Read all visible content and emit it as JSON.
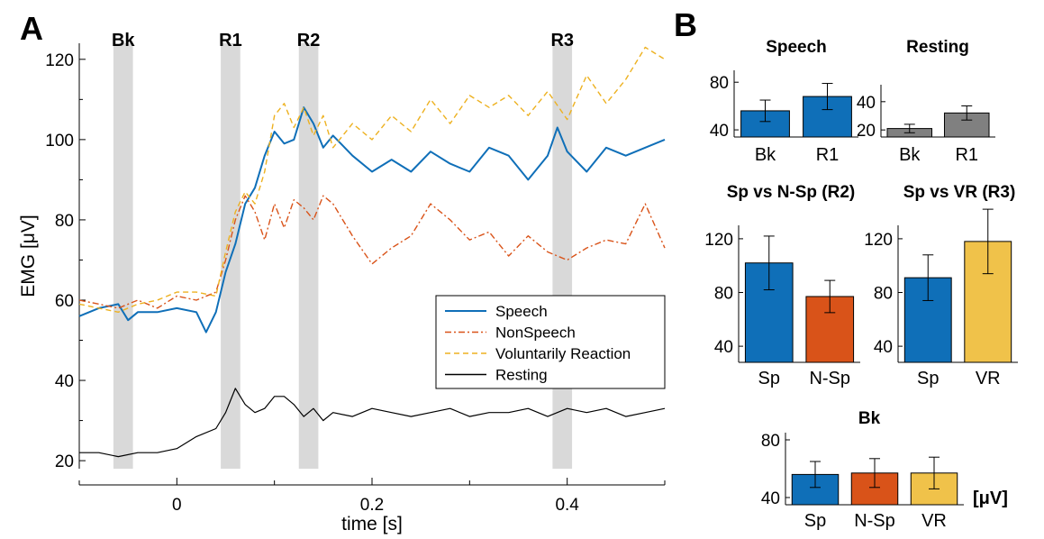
{
  "panel_labels": {
    "a": "A",
    "b": "B"
  },
  "colors": {
    "speech": "#0f6fb8",
    "nonspeech": "#d95319",
    "voluntary": "#edb120",
    "resting": "#000000",
    "shade": "#d9d9d9",
    "resting_bar": "#808080",
    "vr_bar": "#f0c24a"
  },
  "chart_data": [
    {
      "id": "A",
      "type": "line",
      "xlabel": "time [s]",
      "ylabel": "EMG [μV]",
      "xlim": [
        -0.1,
        0.5
      ],
      "ylim": [
        18,
        124
      ],
      "x_ticks": [
        0,
        0.2,
        0.4
      ],
      "x_tick_labels": [
        "0",
        "0.2",
        "0.4"
      ],
      "y_ticks": [
        20,
        40,
        60,
        80,
        100,
        120
      ],
      "y_tick_labels": [
        "20",
        "40",
        "60",
        "80",
        "100",
        "120"
      ],
      "grid": false,
      "legend_position": "lower-right",
      "windows": [
        {
          "label": "Bk",
          "start": -0.065,
          "end": -0.045
        },
        {
          "label": "R1",
          "start": 0.045,
          "end": 0.065
        },
        {
          "label": "R2",
          "start": 0.125,
          "end": 0.145
        },
        {
          "label": "R3",
          "start": 0.385,
          "end": 0.405
        }
      ],
      "series": [
        {
          "name": "Speech",
          "style": "solid",
          "color_key": "speech",
          "x": [
            -0.1,
            -0.08,
            -0.06,
            -0.05,
            -0.04,
            -0.02,
            0,
            0.02,
            0.03,
            0.04,
            0.05,
            0.06,
            0.07,
            0.08,
            0.09,
            0.1,
            0.11,
            0.12,
            0.13,
            0.14,
            0.15,
            0.16,
            0.18,
            0.2,
            0.22,
            0.24,
            0.26,
            0.28,
            0.3,
            0.32,
            0.34,
            0.36,
            0.38,
            0.39,
            0.4,
            0.42,
            0.44,
            0.46,
            0.48,
            0.5
          ],
          "y": [
            56,
            58,
            59,
            55,
            57,
            57,
            58,
            57,
            52,
            57,
            67,
            74,
            84,
            88,
            96,
            102,
            99,
            100,
            108,
            104,
            98,
            101,
            96,
            92,
            95,
            92,
            97,
            94,
            92,
            98,
            96,
            90,
            96,
            103,
            97,
            92,
            98,
            96,
            98,
            100
          ]
        },
        {
          "name": "NonSpeech",
          "style": "dashdot",
          "color_key": "nonspeech",
          "x": [
            -0.1,
            -0.08,
            -0.06,
            -0.04,
            -0.02,
            0,
            0.02,
            0.04,
            0.05,
            0.06,
            0.07,
            0.08,
            0.09,
            0.1,
            0.11,
            0.12,
            0.13,
            0.14,
            0.15,
            0.16,
            0.18,
            0.2,
            0.22,
            0.24,
            0.26,
            0.28,
            0.3,
            0.32,
            0.34,
            0.36,
            0.38,
            0.4,
            0.42,
            0.44,
            0.46,
            0.48,
            0.5
          ],
          "y": [
            60,
            59,
            58,
            60,
            58,
            61,
            60,
            62,
            70,
            80,
            86,
            82,
            75,
            84,
            78,
            85,
            83,
            80,
            86,
            84,
            76,
            69,
            73,
            76,
            84,
            80,
            75,
            77,
            71,
            76,
            72,
            70,
            73,
            75,
            74,
            84,
            73
          ]
        },
        {
          "name": "Voluntarily Reaction",
          "style": "dashed",
          "color_key": "voluntary",
          "x": [
            -0.1,
            -0.08,
            -0.06,
            -0.04,
            -0.02,
            0,
            0.02,
            0.04,
            0.05,
            0.06,
            0.07,
            0.08,
            0.09,
            0.1,
            0.11,
            0.12,
            0.13,
            0.14,
            0.15,
            0.16,
            0.18,
            0.2,
            0.22,
            0.24,
            0.26,
            0.28,
            0.3,
            0.32,
            0.34,
            0.36,
            0.38,
            0.4,
            0.42,
            0.44,
            0.46,
            0.48,
            0.5
          ],
          "y": [
            59,
            58,
            57,
            59,
            60,
            62,
            62,
            61,
            72,
            82,
            87,
            84,
            92,
            106,
            109,
            103,
            108,
            101,
            106,
            98,
            104,
            100,
            106,
            102,
            110,
            104,
            111,
            108,
            111,
            106,
            112,
            105,
            116,
            109,
            115,
            123,
            120
          ]
        },
        {
          "name": "Resting",
          "style": "solid",
          "color_key": "resting",
          "x": [
            -0.1,
            -0.08,
            -0.06,
            -0.04,
            -0.02,
            0,
            0.02,
            0.04,
            0.05,
            0.06,
            0.07,
            0.08,
            0.09,
            0.1,
            0.11,
            0.12,
            0.13,
            0.14,
            0.15,
            0.16,
            0.18,
            0.2,
            0.22,
            0.24,
            0.26,
            0.28,
            0.3,
            0.32,
            0.34,
            0.36,
            0.38,
            0.4,
            0.42,
            0.44,
            0.46,
            0.48,
            0.5
          ],
          "y": [
            22,
            22,
            21,
            22,
            22,
            23,
            26,
            28,
            32,
            38,
            34,
            32,
            33,
            36,
            36,
            34,
            31,
            33,
            30,
            32,
            31,
            33,
            32,
            31,
            32,
            33,
            31,
            32,
            32,
            33,
            31,
            33,
            32,
            33,
            31,
            32,
            33
          ]
        }
      ]
    },
    {
      "id": "B-speech",
      "type": "bar",
      "title": "Speech",
      "categories": [
        "Bk",
        "R1"
      ],
      "values": [
        56,
        68
      ],
      "errors": [
        9,
        11
      ],
      "color_keys": [
        "speech",
        "speech"
      ],
      "ylim": [
        34,
        90
      ],
      "y_ticks": [
        40,
        80
      ],
      "y_tick_labels": [
        "40",
        "80"
      ]
    },
    {
      "id": "B-resting",
      "type": "bar",
      "title": "Resting",
      "categories": [
        "Bk",
        "R1"
      ],
      "values": [
        21,
        32
      ],
      "errors": [
        3,
        5
      ],
      "color_keys": [
        "resting_bar",
        "resting_bar"
      ],
      "ylim": [
        15,
        52
      ],
      "y_ticks": [
        20,
        40
      ],
      "y_tick_labels": [
        "20",
        "40"
      ]
    },
    {
      "id": "B-r2",
      "type": "bar",
      "title": "Sp vs N-Sp (R2)",
      "categories": [
        "Sp",
        "N-Sp"
      ],
      "values": [
        102,
        77
      ],
      "errors": [
        20,
        12
      ],
      "color_keys": [
        "speech",
        "nonspeech"
      ],
      "ylim": [
        28,
        130
      ],
      "y_ticks": [
        40,
        80,
        120
      ],
      "y_tick_labels": [
        "40",
        "80",
        "120"
      ]
    },
    {
      "id": "B-r3",
      "type": "bar",
      "title": "Sp vs VR (R3)",
      "categories": [
        "Sp",
        "VR"
      ],
      "values": [
        91,
        118
      ],
      "errors": [
        17,
        24
      ],
      "color_keys": [
        "speech",
        "vr_bar"
      ],
      "ylim": [
        28,
        130
      ],
      "y_ticks": [
        40,
        80,
        120
      ],
      "y_tick_labels": [
        "40",
        "80",
        "120"
      ]
    },
    {
      "id": "B-bk",
      "type": "bar",
      "title": "Bk",
      "categories": [
        "Sp",
        "N-Sp",
        "VR"
      ],
      "values": [
        56,
        57,
        57
      ],
      "errors": [
        9,
        10,
        11
      ],
      "color_keys": [
        "speech",
        "nonspeech",
        "vr_bar"
      ],
      "ylim": [
        35,
        85
      ],
      "y_ticks": [
        40,
        80
      ],
      "y_tick_labels": [
        "40",
        "80"
      ],
      "unit_label": "[μV]"
    }
  ]
}
